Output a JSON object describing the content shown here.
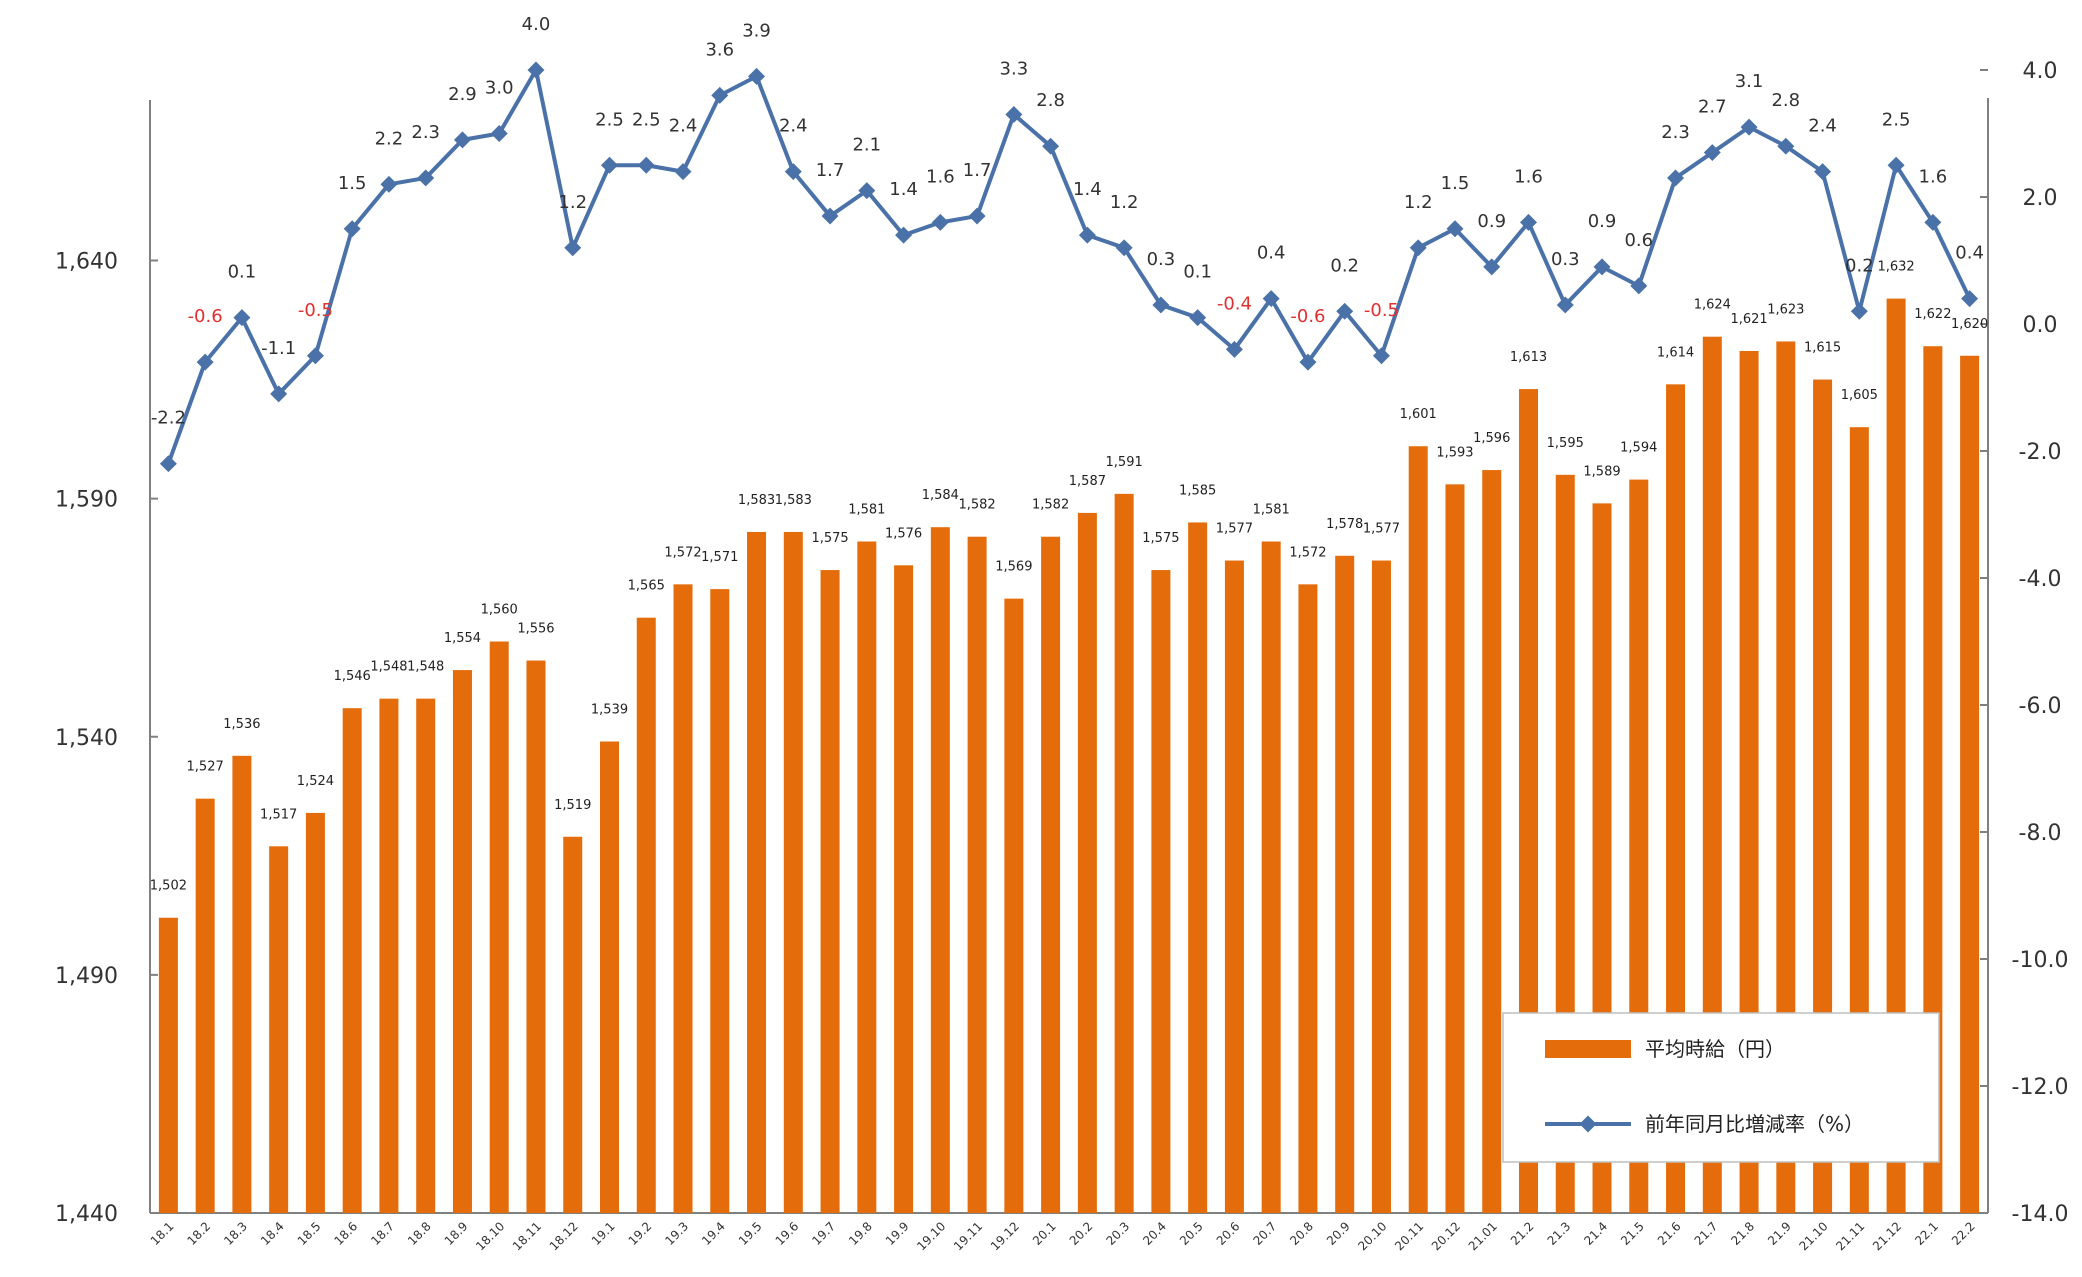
{
  "chart_data": {
    "type": "bar+line",
    "categories": [
      "18.1",
      "18.2",
      "18.3",
      "18.4",
      "18.5",
      "18.6",
      "18.7",
      "18.8",
      "18.9",
      "18.10",
      "18.11",
      "18.12",
      "19.1",
      "19.2",
      "19.3",
      "19.4",
      "19.5",
      "19.6",
      "19.7",
      "19.8",
      "19.9",
      "19.10",
      "19.11",
      "19.12",
      "20.1",
      "20.2",
      "20.3",
      "20.4",
      "20.5",
      "20.6",
      "20.7",
      "20.8",
      "20.9",
      "20.10",
      "20.11",
      "20.12",
      "21.01",
      "21.2",
      "21.3",
      "21.4",
      "21.5",
      "21.6",
      "21.7",
      "21.8",
      "21.9",
      "21.10",
      "21.11",
      "21.12",
      "22.1",
      "22.2"
    ],
    "series": [
      {
        "name": "平均時給（円）",
        "type": "bar",
        "axis": "left",
        "color": "#e46c0a",
        "values": [
          1502,
          1527,
          1536,
          1517,
          1524,
          1546,
          1548,
          1548,
          1554,
          1560,
          1556,
          1519,
          1539,
          1565,
          1572,
          1571,
          1583,
          1583,
          1575,
          1581,
          1576,
          1584,
          1582,
          1569,
          1582,
          1587,
          1591,
          1575,
          1585,
          1577,
          1581,
          1572,
          1578,
          1577,
          1601,
          1593,
          1596,
          1613,
          1595,
          1589,
          1594,
          1614,
          1624,
          1621,
          1623,
          1615,
          1605,
          1632,
          1622,
          1620
        ],
        "labels": [
          "1,502",
          "1,527",
          "1,536",
          "1,517",
          "1,524",
          "1,546",
          "1,548",
          "1,548",
          "1,554",
          "1,560",
          "1,556",
          "1,519",
          "1,539",
          "1,565",
          "1,572",
          "1,571",
          "1,583",
          "1,583",
          "1,575",
          "1,581",
          "1,576",
          "1,584",
          "1,582",
          "1,569",
          "1,582",
          "1,587",
          "1,591",
          "1,575",
          "1,585",
          "1,577",
          "1,581",
          "1,572",
          "1,578",
          "1,577",
          "1,601",
          "1,593",
          "1,596",
          "1,613",
          "1,595",
          "1,589",
          "1,594",
          "1,614",
          "1,624",
          "1,621",
          "1,623",
          "1,615",
          "1,605",
          "1,632",
          "1,622",
          "1,620"
        ]
      },
      {
        "name": "前年同月比増減率（%）",
        "type": "line",
        "axis": "right",
        "color": "#4a72a8",
        "values": [
          -2.2,
          -0.6,
          0.1,
          -1.1,
          -0.5,
          1.5,
          2.2,
          2.3,
          2.9,
          3.0,
          4.0,
          1.2,
          2.5,
          2.5,
          2.4,
          3.6,
          3.9,
          2.4,
          1.7,
          2.1,
          1.4,
          1.6,
          1.7,
          3.3,
          2.8,
          1.4,
          1.2,
          0.3,
          0.1,
          -0.4,
          0.4,
          -0.6,
          0.2,
          -0.5,
          1.2,
          1.5,
          0.9,
          1.6,
          0.3,
          0.9,
          0.6,
          2.3,
          2.7,
          3.1,
          2.8,
          2.4,
          0.2,
          2.5,
          1.6,
          0.4
        ],
        "labels": [
          "-2.2",
          "-0.6",
          "0.1",
          "-1.1",
          "-0.5",
          "1.5",
          "2.2",
          "2.3",
          "2.9",
          "3.0",
          "4.0",
          "1.2",
          "2.5",
          "2.5",
          "2.4",
          "3.6",
          "3.9",
          "2.4",
          "1.7",
          "2.1",
          "1.4",
          "1.6",
          "1.7",
          "3.3",
          "2.8",
          "1.4",
          "1.2",
          "0.3",
          "0.1",
          "-0.4",
          "0.4",
          "-0.6",
          "0.2",
          "-0.5",
          "1.2",
          "1.5",
          "0.9",
          "1.6",
          "0.3",
          "0.9",
          "0.6",
          "2.3",
          "2.7",
          "3.1",
          "2.8",
          "2.4",
          "0.2",
          "2.5",
          "1.6",
          "0.4"
        ]
      }
    ],
    "y_left": {
      "range": [
        1440,
        1680
      ],
      "ticks": [
        "1,440",
        "1,490",
        "1,540",
        "1,590",
        "1,640"
      ]
    },
    "y_right": {
      "range": [
        -14.0,
        4.0
      ],
      "ticks": [
        "4.0",
        "2.0",
        "0.0",
        "-2.0",
        "-4.0",
        "-6.0",
        "-8.0",
        "-10.0",
        "-12.0",
        "-14.0"
      ]
    },
    "negative_label_color": "#e03030",
    "red_labels": [
      "-0.4",
      "-0.6",
      "-0.5"
    ],
    "legend": {
      "position": "bottom-right",
      "items": [
        "平均時給（円）",
        "前年同月比増減率（%）"
      ]
    }
  }
}
